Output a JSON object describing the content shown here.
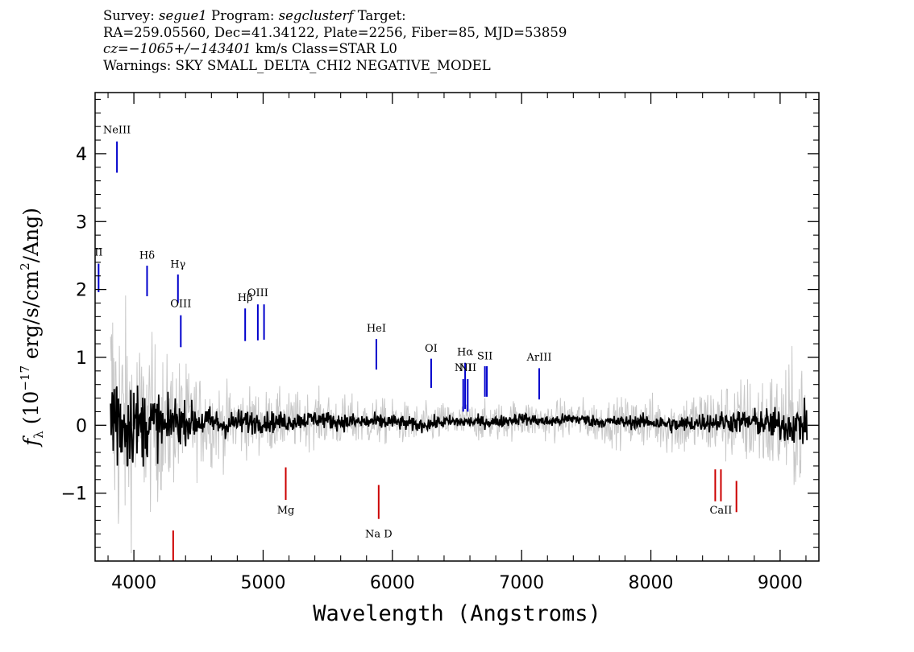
{
  "header": {
    "line1": {
      "survey_label": "Survey:",
      "survey_value": "segue1",
      "program_label": "Program:",
      "program_value": "segclusterf",
      "target_label": "Target:"
    },
    "line2": "RA=259.05560, Dec=41.34122, Plate=2256, Fiber=85, MJD=53859",
    "line3": {
      "cz_label": "cz=",
      "cz_value": "−1065+/−143401",
      "cz_rest": " km/s Class=STAR L0"
    },
    "line4": "Warnings: SKY SMALL_DELTA_CHI2 NEGATIVE_MODEL"
  },
  "chart_data": {
    "type": "line",
    "xlabel": "Wavelength (Angstroms)",
    "ylabel_parts": {
      "f": "f",
      "lambda": "λ",
      "open": " (10",
      "exp": "−17",
      "mid": " erg/s/cm",
      "sq": "2",
      "close": "/Ang)"
    },
    "xlim": [
      3700,
      9300
    ],
    "ylim": [
      -2.0,
      4.9
    ],
    "x_ticks": [
      4000,
      5000,
      6000,
      7000,
      8000,
      9000
    ],
    "x_tick_labels": [
      "4000",
      "5000",
      "6000",
      "7000",
      "8000",
      "9000"
    ],
    "y_ticks": [
      -1,
      0,
      1,
      2,
      3,
      4
    ],
    "y_tick_labels": [
      "−1",
      "0",
      "1",
      "2",
      "3",
      "4"
    ],
    "x_minor_step": 200,
    "y_minor_step": 0.2,
    "grid": false,
    "colors": {
      "flux": "#000000",
      "error": "#c8c8c8",
      "emission": "#0000cc",
      "absorption": "#cc0000",
      "axes": "#000000"
    },
    "series": [
      {
        "name": "",
        "role": "flux",
        "x": [
          3800,
          3850,
          3900,
          3950,
          4000,
          4050,
          4100,
          4150,
          4200,
          4250,
          4300,
          4350,
          4400,
          4500,
          4600,
          4700,
          4800,
          4900,
          5000,
          5200,
          5400,
          5600,
          5800,
          6000,
          6200,
          6400,
          6600,
          6800,
          7000,
          7200,
          7400,
          7600,
          7800,
          8000,
          8200,
          8400,
          8600,
          8800,
          9000,
          9200
        ],
        "y": [
          0.1,
          0.2,
          0.05,
          0.0,
          0.1,
          -0.05,
          0.05,
          0.0,
          0.05,
          -0.1,
          0.1,
          0.05,
          0.05,
          0.05,
          0.05,
          0.0,
          0.05,
          0.05,
          0.05,
          0.05,
          0.1,
          0.05,
          0.05,
          0.05,
          0.0,
          0.05,
          0.05,
          0.05,
          0.1,
          0.05,
          0.1,
          0.05,
          0.05,
          0.05,
          0.0,
          0.05,
          0.05,
          0.05,
          0.0,
          0.0
        ],
        "amp": [
          1.8,
          1.5,
          1.2,
          1.1,
          1.0,
          0.9,
          0.85,
          0.8,
          0.7,
          0.6,
          0.55,
          0.5,
          0.45,
          0.4,
          0.35,
          0.3,
          0.3,
          0.28,
          0.25,
          0.22,
          0.2,
          0.2,
          0.2,
          0.18,
          0.16,
          0.15,
          0.14,
          0.14,
          0.14,
          0.14,
          0.14,
          0.14,
          0.15,
          0.17,
          0.2,
          0.22,
          0.25,
          0.3,
          0.4,
          0.5
        ]
      },
      {
        "name": "",
        "role": "error",
        "x": [
          3800,
          3850,
          3900,
          3950,
          4000,
          4050,
          4100,
          4150,
          4200,
          4250,
          4300,
          4350,
          4400,
          4500,
          4600,
          4700,
          4800,
          4900,
          5000,
          5200,
          5400,
          5600,
          5800,
          6000,
          6200,
          6400,
          6600,
          6800,
          7000,
          7200,
          7400,
          7600,
          7800,
          8000,
          8200,
          8400,
          8600,
          8800,
          9000,
          9200
        ],
        "y": [
          0.1,
          0.2,
          0.05,
          0.0,
          0.1,
          -0.05,
          0.05,
          0.0,
          0.05,
          -0.1,
          0.1,
          0.05,
          0.05,
          0.05,
          0.05,
          0.0,
          0.05,
          0.05,
          0.05,
          0.05,
          0.1,
          0.05,
          0.05,
          0.05,
          0.0,
          0.05,
          0.05,
          0.05,
          0.1,
          0.05,
          0.1,
          0.05,
          0.05,
          0.05,
          0.0,
          0.05,
          0.05,
          0.05,
          0.0,
          0.0
        ],
        "amp": [
          3.5,
          3.0,
          2.6,
          2.3,
          2.0,
          1.9,
          1.8,
          1.7,
          1.6,
          1.5,
          1.4,
          1.3,
          1.2,
          1.0,
          0.9,
          0.8,
          0.75,
          0.7,
          0.65,
          0.6,
          0.55,
          0.55,
          0.5,
          0.45,
          0.42,
          0.4,
          0.4,
          0.4,
          0.4,
          0.4,
          0.42,
          0.45,
          0.5,
          0.55,
          0.65,
          0.75,
          0.85,
          1.0,
          1.2,
          1.4
        ]
      }
    ],
    "emission_lines": [
      {
        "label": "NeIII",
        "x": 3869,
        "y1": 3.72,
        "y2": 4.18,
        "label_y": 4.3
      },
      {
        "label": "II",
        "x": 3727,
        "y1": 1.96,
        "y2": 2.38,
        "label_y": 2.5
      },
      {
        "label": "Hδ",
        "x": 4102,
        "y1": 1.9,
        "y2": 2.35,
        "label_y": 2.45
      },
      {
        "label": "Hγ",
        "x": 4341,
        "y1": 1.8,
        "y2": 2.22,
        "label_y": 2.32
      },
      {
        "label": "OIII",
        "x": 4363,
        "y1": 1.15,
        "y2": 1.62,
        "label_y": 1.74
      },
      {
        "label": "Hβ",
        "x": 4861,
        "y1": 1.24,
        "y2": 1.72,
        "label_y": 1.83
      },
      {
        "label": "OIII",
        "x": 4959,
        "y1": 1.25,
        "y2": 1.78,
        "label_y": 1.9
      },
      {
        "label": "",
        "x": 5007,
        "y1": 1.26,
        "y2": 1.78,
        "label_y": 1.9
      },
      {
        "label": "HeI",
        "x": 5876,
        "y1": 0.82,
        "y2": 1.27,
        "label_y": 1.38
      },
      {
        "label": "OI",
        "x": 6300,
        "y1": 0.55,
        "y2": 0.98,
        "label_y": 1.08
      },
      {
        "label": "NII",
        "x": 6548,
        "y1": 0.2,
        "y2": 0.68,
        "label_y": 0.8
      },
      {
        "label": "Hα",
        "x": 6563,
        "y1": 0.24,
        "y2": 0.92,
        "label_y": 1.03
      },
      {
        "label": "NII",
        "x": 6583,
        "y1": 0.2,
        "y2": 0.68,
        "label_y": 0.8
      },
      {
        "label": "SII",
        "x": 6716,
        "y1": 0.42,
        "y2": 0.87,
        "label_y": 0.97
      },
      {
        "label": "",
        "x": 6731,
        "y1": 0.42,
        "y2": 0.87,
        "label_y": 0.97
      },
      {
        "label": "ArIII",
        "x": 7136,
        "y1": 0.38,
        "y2": 0.84,
        "label_y": 0.95
      }
    ],
    "absorption_lines": [
      {
        "label": "",
        "x": 4304,
        "y1": -2.0,
        "y2": -1.55,
        "label_y": -2.1
      },
      {
        "label": "Mg",
        "x": 5175,
        "y1": -1.1,
        "y2": -0.62,
        "label_y": -1.3
      },
      {
        "label": "Na D",
        "x": 5894,
        "y1": -1.38,
        "y2": -0.88,
        "label_y": -1.65
      },
      {
        "label": "",
        "x": 8498,
        "y1": -1.12,
        "y2": -0.65,
        "label_y": -1.3
      },
      {
        "label": "CaII",
        "x": 8542,
        "y1": -1.12,
        "y2": -0.65,
        "label_y": -1.3
      },
      {
        "label": "",
        "x": 8662,
        "y1": -1.28,
        "y2": -0.82,
        "label_y": -1.4
      }
    ]
  }
}
